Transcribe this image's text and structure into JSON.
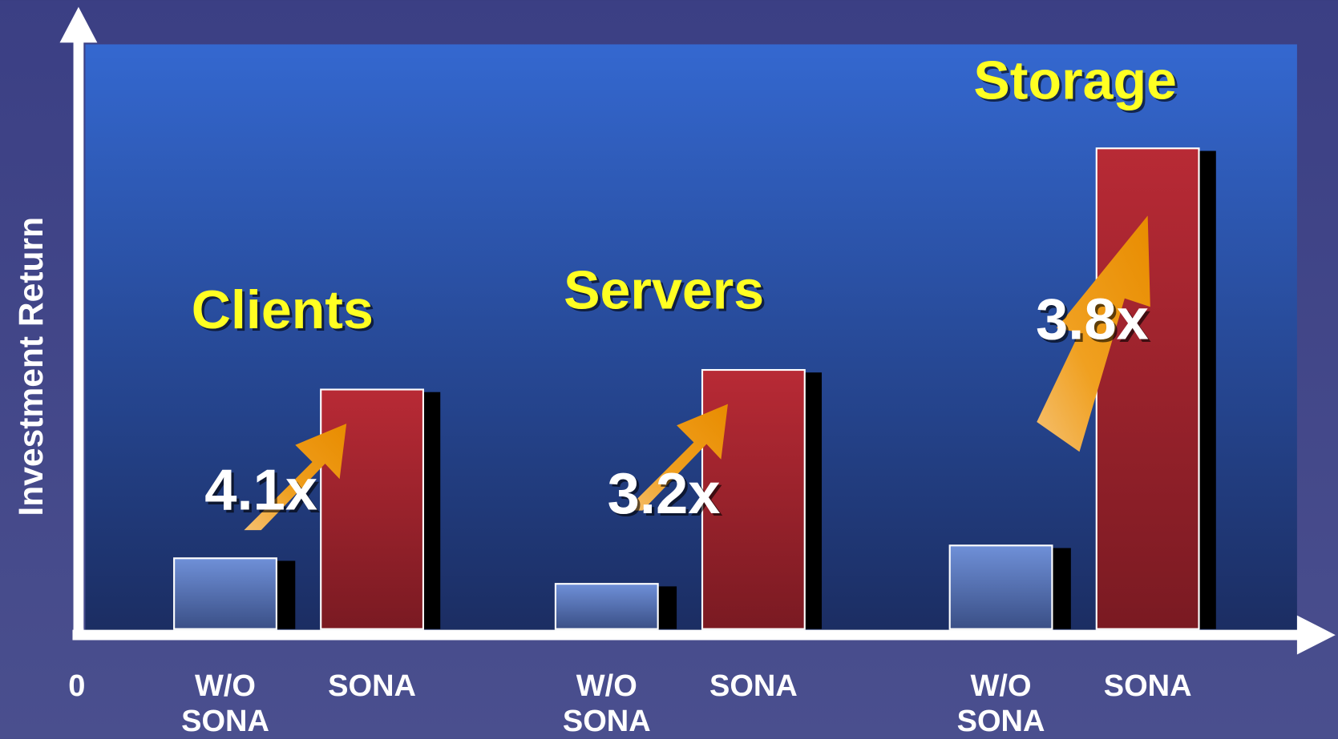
{
  "chart_data": {
    "type": "bar",
    "y_label": "Investment Return",
    "categories": [
      "Clients",
      "Servers",
      "Storage"
    ],
    "series": [
      {
        "name": "W/O SONA",
        "color": "#6f90d8",
        "values": [
          83,
          53,
          98
        ]
      },
      {
        "name": "SONA",
        "color": "#b82a35",
        "values": [
          281,
          304,
          564
        ]
      }
    ],
    "annotations": [
      "4.1x",
      "3.2x",
      "3.8x"
    ],
    "ylim": [
      0,
      600
    ],
    "yticks": [
      0
    ]
  }
}
